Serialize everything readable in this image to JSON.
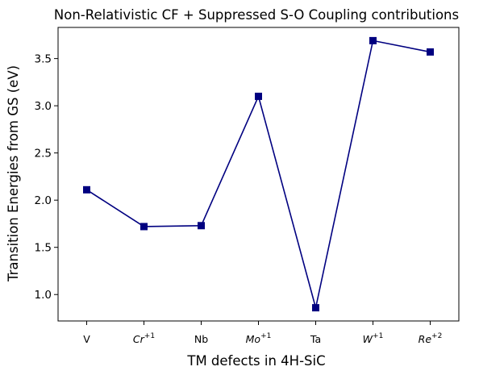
{
  "chart_data": {
    "type": "line",
    "title": "Non-Relativistic CF + Suppressed S-O Coupling contributions",
    "xlabel": "TM defects in 4H-SiC",
    "ylabel": "Transition Energies from GS (eV)",
    "categories": [
      {
        "base": "V",
        "sup": ""
      },
      {
        "base": "Cr",
        "sup": "+1"
      },
      {
        "base": "Nb",
        "sup": ""
      },
      {
        "base": "Mo",
        "sup": "+1"
      },
      {
        "base": "Ta",
        "sup": ""
      },
      {
        "base": "W",
        "sup": "+1"
      },
      {
        "base": "Re",
        "sup": "+2"
      }
    ],
    "series": [
      {
        "values": [
          2.11,
          1.72,
          1.73,
          3.1,
          0.86,
          3.69,
          3.57
        ],
        "color": "#000080",
        "marker": "square"
      }
    ],
    "ylim": [
      0.72,
      3.83
    ],
    "yticks": [
      "1.0",
      "1.5",
      "2.0",
      "2.5",
      "3.0",
      "3.5"
    ],
    "grid": false,
    "legend": "none"
  }
}
